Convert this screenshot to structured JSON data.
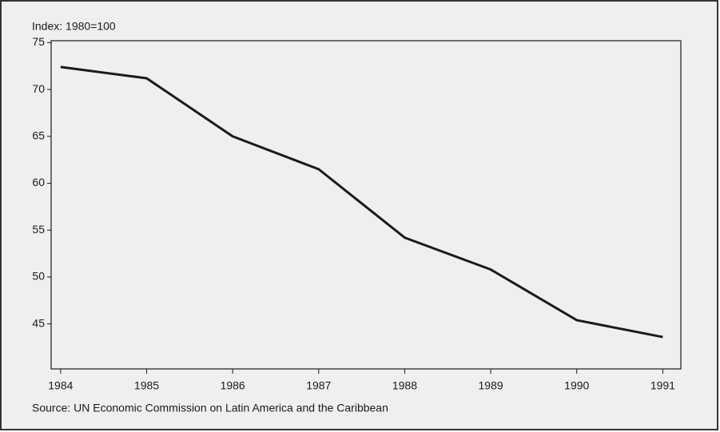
{
  "chart_data": {
    "type": "line",
    "y_label": "Index: 1980=100",
    "source": "Source: UN Economic Commission on Latin America and the Caribbean",
    "x": [
      1984,
      1985,
      1986,
      1987,
      1988,
      1989,
      1990,
      1991
    ],
    "series": [
      {
        "name": null,
        "color": "#1a1a1a",
        "values": [
          72.4,
          71.2,
          65.0,
          61.5,
          54.2,
          50.8,
          45.4,
          43.6
        ]
      }
    ],
    "xlim": [
      1983.89,
      1991.21
    ],
    "xticks": [
      1984,
      1985,
      1986,
      1987,
      1988,
      1989,
      1990,
      1991
    ],
    "ylim": [
      40.2,
      75.2
    ],
    "yticks": [
      45,
      50,
      55,
      60,
      65,
      70,
      75
    ],
    "grid": false
  }
}
